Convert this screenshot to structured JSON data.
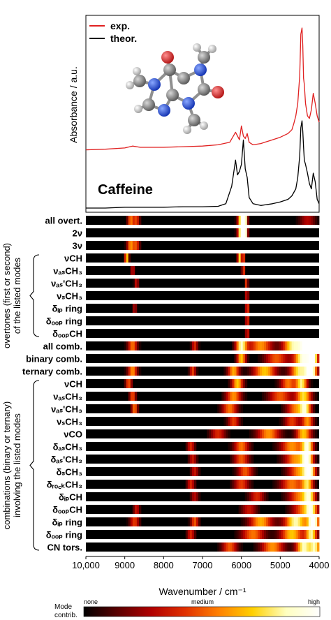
{
  "chart_data": {
    "type": "line+heatmap",
    "title": "Caffeine",
    "xlabel": "Wavenumber / cm⁻¹",
    "ylabel_spectrum": "Absorbance / a.u.",
    "xlim": [
      10000,
      4000
    ],
    "x_ticks": [
      "10,000",
      "9000",
      "8000",
      "7000",
      "6000",
      "5000",
      "4000"
    ],
    "x_tick_values": [
      10000,
      9000,
      8000,
      7000,
      6000,
      5000,
      4000
    ],
    "legend": {
      "placement": "top-left",
      "entries": [
        {
          "name": "exp.",
          "color": "#e02020"
        },
        {
          "name": "theor.",
          "color": "#000000"
        }
      ]
    },
    "series": [
      {
        "name": "exp.",
        "color": "#e02020",
        "x": [
          10000,
          9500,
          9000,
          8800,
          8600,
          8000,
          7500,
          7000,
          6600,
          6300,
          6150,
          6050,
          6000,
          5950,
          5900,
          5850,
          5800,
          5700,
          5500,
          5200,
          5000,
          4800,
          4700,
          4650,
          4600,
          4550,
          4500,
          4470,
          4440,
          4420,
          4400,
          4380,
          4350,
          4300,
          4250,
          4200,
          4150,
          4100,
          4050,
          4000
        ],
        "y": [
          0.03,
          0.035,
          0.045,
          0.06,
          0.05,
          0.05,
          0.055,
          0.06,
          0.07,
          0.09,
          0.17,
          0.11,
          0.22,
          0.14,
          0.12,
          0.16,
          0.09,
          0.07,
          0.08,
          0.11,
          0.13,
          0.16,
          0.19,
          0.24,
          0.3,
          0.4,
          0.62,
          0.95,
          1.0,
          0.86,
          0.6,
          0.55,
          0.4,
          0.3,
          0.28,
          0.35,
          0.48,
          0.4,
          0.3,
          0.25
        ]
      },
      {
        "name": "theor.",
        "color": "#000000",
        "x": [
          10000,
          9500,
          9000,
          8800,
          8600,
          8000,
          7500,
          7000,
          6600,
          6400,
          6250,
          6150,
          6100,
          6050,
          6000,
          5950,
          5900,
          5850,
          5800,
          5700,
          5500,
          5200,
          5000,
          4800,
          4700,
          4600,
          4550,
          4500,
          4470,
          4440,
          4420,
          4400,
          4380,
          4350,
          4300,
          4250,
          4200,
          4150,
          4100,
          4050,
          4000
        ],
        "y": [
          0.0,
          0.0,
          0.01,
          0.01,
          0.01,
          0.01,
          0.015,
          0.015,
          0.02,
          0.05,
          0.25,
          0.55,
          0.38,
          0.42,
          0.5,
          0.78,
          0.45,
          0.35,
          0.12,
          0.05,
          0.03,
          0.05,
          0.07,
          0.1,
          0.14,
          0.22,
          0.35,
          0.6,
          0.92,
          1.0,
          0.88,
          0.7,
          0.55,
          0.5,
          0.4,
          0.28,
          0.22,
          0.4,
          0.3,
          0.1,
          0.05
        ]
      }
    ],
    "heatmap": {
      "colorbar_label": "Mode contrib.",
      "colorbar_ticks": [
        "none",
        "medium",
        "high"
      ],
      "colormap": [
        "#000000",
        "#5a0000",
        "#b00000",
        "#e03000",
        "#ff8000",
        "#ffd000",
        "#ffffc0",
        "#ffffff"
      ],
      "rows": [
        {
          "label": "all overt.",
          "peaks": [
            [
              8850,
              80,
              0.55
            ],
            [
              8700,
              80,
              0.45
            ],
            [
              6000,
              90,
              0.95
            ],
            [
              5900,
              60,
              0.75
            ],
            [
              4300,
              200,
              0.3
            ]
          ]
        },
        {
          "label": "2ν",
          "peaks": [
            [
              6000,
              90,
              1.0
            ],
            [
              5900,
              60,
              0.8
            ]
          ]
        },
        {
          "label": "3ν",
          "peaks": [
            [
              8850,
              90,
              0.6
            ],
            [
              8700,
              80,
              0.45
            ]
          ]
        },
        {
          "label": "νCH",
          "peaks": [
            [
              8950,
              50,
              0.75
            ],
            [
              6050,
              50,
              0.75
            ],
            [
              5950,
              40,
              0.45
            ]
          ]
        },
        {
          "label": "νₐₛCH₃",
          "peaks": [
            [
              8800,
              50,
              0.35
            ],
            [
              5950,
              40,
              0.45
            ]
          ]
        },
        {
          "label": "νₐₛ'CH₃",
          "peaks": [
            [
              8700,
              50,
              0.35
            ],
            [
              5870,
              40,
              0.45
            ]
          ]
        },
        {
          "label": "νₛCH₃",
          "peaks": [
            [
              5860,
              40,
              0.4
            ]
          ]
        },
        {
          "label": "δᵢₚ ring",
          "peaks": [
            [
              8750,
              50,
              0.3
            ],
            [
              5850,
              40,
              0.55
            ]
          ]
        },
        {
          "label": "δₒₒₚ ring",
          "peaks": [
            [
              5850,
              40,
              0.5
            ]
          ]
        },
        {
          "label": "δₒₒₚCH",
          "peaks": [
            [
              5850,
              40,
              0.45
            ]
          ]
        },
        {
          "label": "all comb.",
          "peaks": [
            [
              8800,
              120,
              0.55
            ],
            [
              7200,
              80,
              0.4
            ],
            [
              6000,
              150,
              0.85
            ],
            [
              5500,
              300,
              0.6
            ],
            [
              4700,
              250,
              0.75
            ],
            [
              4300,
              250,
              1.0
            ],
            [
              4100,
              150,
              0.9
            ]
          ]
        },
        {
          "label": "binary comb.",
          "peaks": [
            [
              6000,
              120,
              0.7
            ],
            [
              5100,
              300,
              0.5
            ],
            [
              4400,
              250,
              0.95
            ],
            [
              4150,
              120,
              0.8
            ]
          ]
        },
        {
          "label": "ternary comb.",
          "peaks": [
            [
              8800,
              120,
              0.6
            ],
            [
              7250,
              80,
              0.45
            ],
            [
              6200,
              150,
              0.65
            ],
            [
              5400,
              300,
              0.7
            ],
            [
              4500,
              250,
              0.8
            ],
            [
              4200,
              150,
              0.9
            ]
          ]
        },
        {
          "label": "νCH",
          "peaks": [
            [
              8900,
              80,
              0.5
            ],
            [
              6100,
              150,
              0.7
            ],
            [
              4800,
              200,
              0.55
            ],
            [
              4450,
              150,
              0.8
            ]
          ]
        },
        {
          "label": "νₐₛCH₃",
          "peaks": [
            [
              8800,
              80,
              0.5
            ],
            [
              6200,
              200,
              0.6
            ],
            [
              5000,
              300,
              0.5
            ],
            [
              4400,
              200,
              0.75
            ]
          ]
        },
        {
          "label": "νₐₛ'CH₃",
          "peaks": [
            [
              8750,
              80,
              0.55
            ],
            [
              6300,
              200,
              0.55
            ],
            [
              4600,
              250,
              0.55
            ],
            [
              4350,
              150,
              0.7
            ]
          ]
        },
        {
          "label": "νₛCH₃",
          "peaks": [
            [
              6200,
              150,
              0.45
            ],
            [
              4700,
              200,
              0.45
            ],
            [
              4300,
              150,
              0.6
            ]
          ]
        },
        {
          "label": "νCO",
          "peaks": [
            [
              6600,
              200,
              0.4
            ],
            [
              5300,
              300,
              0.6
            ],
            [
              4400,
              200,
              0.7
            ]
          ]
        },
        {
          "label": "δₐₛCH₃",
          "peaks": [
            [
              7300,
              100,
              0.4
            ],
            [
              6000,
              200,
              0.55
            ],
            [
              4700,
              300,
              0.6
            ],
            [
              4300,
              150,
              0.85
            ]
          ]
        },
        {
          "label": "δₐₛ'CH₃",
          "peaks": [
            [
              7250,
              100,
              0.35
            ],
            [
              6000,
              200,
              0.5
            ],
            [
              4600,
              300,
              0.6
            ],
            [
              4300,
              150,
              0.8
            ]
          ]
        },
        {
          "label": "δₛCH₃",
          "peaks": [
            [
              7200,
              100,
              0.35
            ],
            [
              5900,
              200,
              0.5
            ],
            [
              4500,
              300,
              0.6
            ],
            [
              4250,
              150,
              0.75
            ]
          ]
        },
        {
          "label": "δᵣₒ꜀ₖCH₃",
          "peaks": [
            [
              7300,
              100,
              0.4
            ],
            [
              6000,
              200,
              0.45
            ],
            [
              4700,
              300,
              0.55
            ],
            [
              4300,
              150,
              0.7
            ]
          ]
        },
        {
          "label": "δᵢₚCH",
          "peaks": [
            [
              7200,
              100,
              0.3
            ],
            [
              5600,
              200,
              0.4
            ],
            [
              4500,
              300,
              0.55
            ],
            [
              4250,
              150,
              0.65
            ]
          ]
        },
        {
          "label": "δₒₒₚCH",
          "peaks": [
            [
              8700,
              80,
              0.35
            ],
            [
              5800,
              200,
              0.35
            ],
            [
              4400,
              300,
              0.55
            ],
            [
              4200,
              150,
              0.6
            ]
          ]
        },
        {
          "label": "δᵢₚ ring",
          "peaks": [
            [
              8750,
              120,
              0.45
            ],
            [
              7200,
              100,
              0.5
            ],
            [
              5500,
              300,
              0.65
            ],
            [
              4600,
              300,
              0.85
            ],
            [
              4150,
              150,
              1.0
            ]
          ]
        },
        {
          "label": "δₒₒₚ ring",
          "peaks": [
            [
              7300,
              100,
              0.4
            ],
            [
              5700,
              300,
              0.55
            ],
            [
              4700,
              300,
              0.7
            ],
            [
              4200,
              150,
              0.8
            ]
          ]
        },
        {
          "label": "CN tors.",
          "peaks": [
            [
              6300,
              200,
              0.5
            ],
            [
              5200,
              300,
              0.6
            ],
            [
              4400,
              200,
              0.85
            ],
            [
              4100,
              150,
              0.75
            ]
          ]
        }
      ],
      "groups": [
        {
          "label": "overtones (first or second) of the listed modes",
          "from_row": 3,
          "to_row": 9
        },
        {
          "label": "combinations (binary or ternary) involving the listed modes",
          "from_row": 13,
          "to_row": 26
        }
      ]
    }
  }
}
